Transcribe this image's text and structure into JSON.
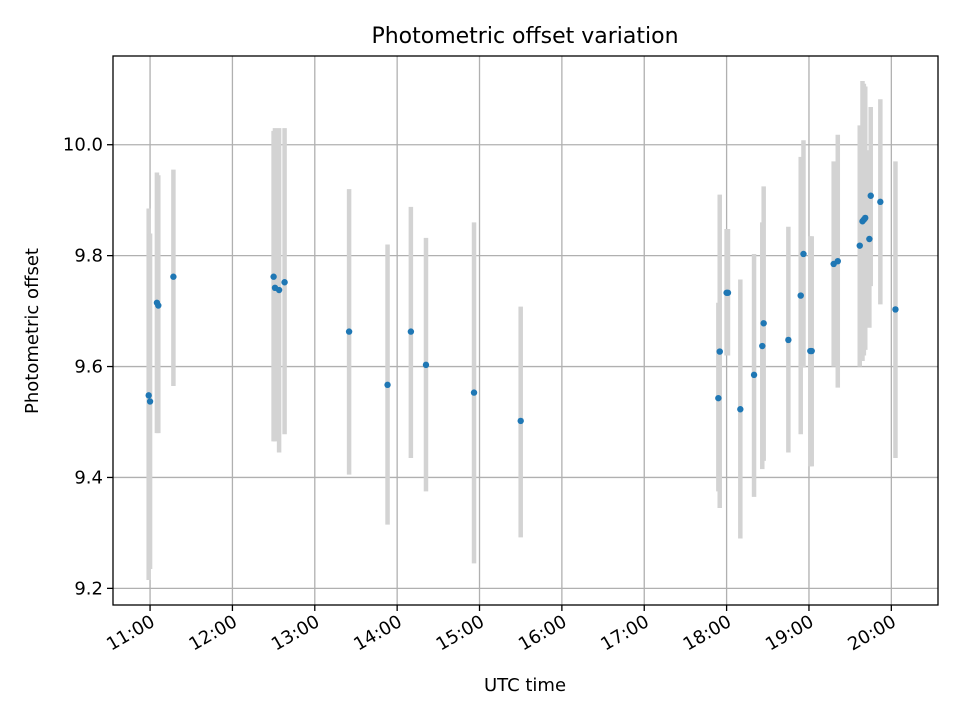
{
  "chart_data": {
    "type": "scatter",
    "title": "Photometric offset variation",
    "xlabel": "UTC time",
    "ylabel": "Photometric offset",
    "grid": true,
    "legend": "none",
    "colors": {
      "marker": "#1f77b4",
      "errorbar": "#d3d3d3",
      "grid": "#b0b0b0"
    },
    "xlim": [
      "10:33",
      "20:34"
    ],
    "ylim": [
      9.17,
      10.16
    ],
    "xticks": [
      "11:00",
      "12:00",
      "13:00",
      "14:00",
      "15:00",
      "16:00",
      "17:00",
      "18:00",
      "19:00",
      "20:00"
    ],
    "yticks": [
      "9.2",
      "9.4",
      "9.6",
      "9.8",
      "10.0"
    ],
    "points": [
      {
        "x": "10:59",
        "y": 9.548,
        "yerr_low": 9.215,
        "yerr_high": 9.885
      },
      {
        "x": "11:00",
        "y": 9.537,
        "yerr_low": 9.235,
        "yerr_high": 9.84
      },
      {
        "x": "11:05",
        "y": 9.715,
        "yerr_low": 9.48,
        "yerr_high": 9.95
      },
      {
        "x": "11:06",
        "y": 9.71,
        "yerr_low": 9.48,
        "yerr_high": 9.945
      },
      {
        "x": "11:17",
        "y": 9.762,
        "yerr_low": 9.565,
        "yerr_high": 9.955
      },
      {
        "x": "12:30",
        "y": 9.762,
        "yerr_low": 9.465,
        "yerr_high": 10.025
      },
      {
        "x": "12:31",
        "y": 9.742,
        "yerr_low": 9.465,
        "yerr_high": 10.03
      },
      {
        "x": "12:34",
        "y": 9.738,
        "yerr_low": 9.445,
        "yerr_high": 10.03
      },
      {
        "x": "12:38",
        "y": 9.752,
        "yerr_low": 9.478,
        "yerr_high": 10.03
      },
      {
        "x": "13:25",
        "y": 9.663,
        "yerr_low": 9.405,
        "yerr_high": 9.92
      },
      {
        "x": "13:53",
        "y": 9.567,
        "yerr_low": 9.315,
        "yerr_high": 9.82
      },
      {
        "x": "14:10",
        "y": 9.663,
        "yerr_low": 9.435,
        "yerr_high": 9.888
      },
      {
        "x": "14:21",
        "y": 9.603,
        "yerr_low": 9.375,
        "yerr_high": 9.832
      },
      {
        "x": "14:56",
        "y": 9.553,
        "yerr_low": 9.245,
        "yerr_high": 9.86
      },
      {
        "x": "15:30",
        "y": 9.502,
        "yerr_low": 9.292,
        "yerr_high": 9.708
      },
      {
        "x": "17:54",
        "y": 9.543,
        "yerr_low": 9.375,
        "yerr_high": 9.715
      },
      {
        "x": "17:55",
        "y": 9.627,
        "yerr_low": 9.345,
        "yerr_high": 9.91
      },
      {
        "x": "18:00",
        "y": 9.733,
        "yerr_low": 9.62,
        "yerr_high": 9.848
      },
      {
        "x": "18:01",
        "y": 9.733,
        "yerr_low": 9.62,
        "yerr_high": 9.848
      },
      {
        "x": "18:10",
        "y": 9.523,
        "yerr_low": 9.29,
        "yerr_high": 9.757
      },
      {
        "x": "18:20",
        "y": 9.585,
        "yerr_low": 9.365,
        "yerr_high": 9.803
      },
      {
        "x": "18:26",
        "y": 9.637,
        "yerr_low": 9.415,
        "yerr_high": 9.86
      },
      {
        "x": "18:27",
        "y": 9.678,
        "yerr_low": 9.43,
        "yerr_high": 9.925
      },
      {
        "x": "18:45",
        "y": 9.648,
        "yerr_low": 9.445,
        "yerr_high": 9.852
      },
      {
        "x": "18:54",
        "y": 9.728,
        "yerr_low": 9.478,
        "yerr_high": 9.978
      },
      {
        "x": "18:56",
        "y": 9.803,
        "yerr_low": 9.598,
        "yerr_high": 10.008
      },
      {
        "x": "19:01",
        "y": 9.628,
        "yerr_low": 9.42,
        "yerr_high": 9.835
      },
      {
        "x": "19:02",
        "y": 9.628,
        "yerr_low": 9.42,
        "yerr_high": 9.835
      },
      {
        "x": "19:18",
        "y": 9.785,
        "yerr_low": 9.6,
        "yerr_high": 9.97
      },
      {
        "x": "19:21",
        "y": 9.79,
        "yerr_low": 9.562,
        "yerr_high": 10.018
      },
      {
        "x": "19:37",
        "y": 9.818,
        "yerr_low": 9.6,
        "yerr_high": 10.035
      },
      {
        "x": "19:39",
        "y": 9.862,
        "yerr_low": 9.61,
        "yerr_high": 10.115
      },
      {
        "x": "19:40",
        "y": 9.865,
        "yerr_low": 9.62,
        "yerr_high": 10.11
      },
      {
        "x": "19:41",
        "y": 9.868,
        "yerr_low": 9.63,
        "yerr_high": 10.105
      },
      {
        "x": "19:44",
        "y": 9.83,
        "yerr_low": 9.67,
        "yerr_high": 9.99
      },
      {
        "x": "19:45",
        "y": 9.908,
        "yerr_low": 9.745,
        "yerr_high": 10.068
      },
      {
        "x": "19:52",
        "y": 9.897,
        "yerr_low": 9.712,
        "yerr_high": 10.082
      },
      {
        "x": "20:03",
        "y": 9.703,
        "yerr_low": 9.435,
        "yerr_high": 9.97
      }
    ]
  }
}
